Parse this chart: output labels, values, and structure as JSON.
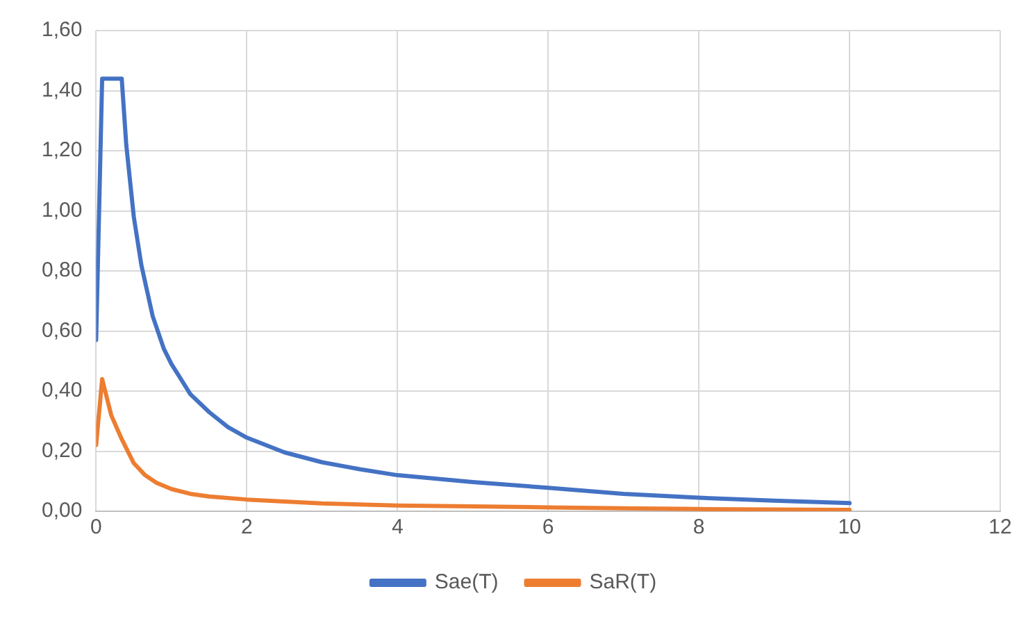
{
  "chart_data": {
    "type": "line",
    "xlim": [
      0,
      12
    ],
    "xticks": [
      0,
      2,
      4,
      6,
      8,
      10,
      12
    ],
    "ylim": [
      0,
      1.6
    ],
    "yticks": [
      {
        "value": 0,
        "label": "0,00"
      },
      {
        "value": 0.2,
        "label": "0,20"
      },
      {
        "value": 0.4,
        "label": "0,40"
      },
      {
        "value": 0.6,
        "label": "0,60"
      },
      {
        "value": 0.8,
        "label": "0,80"
      },
      {
        "value": 1,
        "label": "1,00"
      },
      {
        "value": 1.2,
        "label": "1,20"
      },
      {
        "value": 1.4,
        "label": "1,40"
      },
      {
        "value": 1.6,
        "label": "1,60"
      }
    ],
    "grid": true,
    "legend": "bottom",
    "marker": "none",
    "line_style": "solid",
    "series": [
      {
        "name": "Sae(T)",
        "color": "#4472c4",
        "x": [
          0,
          0.08,
          0.34,
          0.4,
          0.5,
          0.6,
          0.75,
          0.9,
          1,
          1.25,
          1.5,
          1.75,
          2,
          2.5,
          3,
          3.5,
          4,
          5,
          6,
          7,
          8,
          9,
          10
        ],
        "values": [
          0.57,
          1.44,
          1.44,
          1.22,
          0.98,
          0.82,
          0.65,
          0.54,
          0.49,
          0.39,
          0.33,
          0.28,
          0.245,
          0.196,
          0.163,
          0.14,
          0.12,
          0.097,
          0.078,
          0.058,
          0.045,
          0.035,
          0.027
        ]
      },
      {
        "name": "SaR(T)",
        "color": "#ed7d31",
        "x": [
          0,
          0.08,
          0.2,
          0.34,
          0.5,
          0.65,
          0.8,
          1,
          1.25,
          1.5,
          2,
          3,
          4,
          5,
          6,
          7,
          8,
          9,
          10
        ],
        "values": [
          0.22,
          0.44,
          0.32,
          0.24,
          0.16,
          0.12,
          0.095,
          0.074,
          0.058,
          0.049,
          0.039,
          0.026,
          0.019,
          0.016,
          0.013,
          0.01,
          0.0073,
          0.0058,
          0.0046
        ]
      }
    ]
  }
}
